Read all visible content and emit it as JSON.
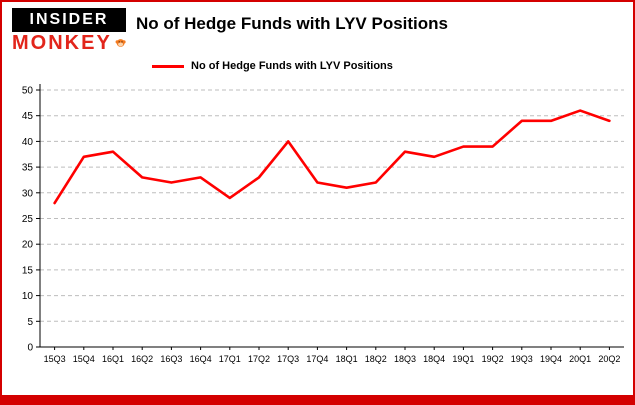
{
  "logo": {
    "top": "INSIDER",
    "bottom": "MONKEY"
  },
  "header": {
    "title": "No of Hedge Funds with LYV Positions"
  },
  "legend": {
    "label": "No of Hedge Funds with LYV Positions",
    "color": "#ff0000"
  },
  "colors": {
    "frame_red": "#d40000",
    "grid_gray": "#bdbdbd",
    "axis_black": "#000000",
    "monkey_orange": "#f47b20"
  },
  "chart_data": {
    "type": "line",
    "title": "No of Hedge Funds with LYV Positions",
    "categories": [
      "15Q3",
      "15Q4",
      "16Q1",
      "16Q2",
      "16Q3",
      "16Q4",
      "17Q1",
      "17Q2",
      "17Q3",
      "17Q4",
      "18Q1",
      "18Q2",
      "18Q3",
      "18Q4",
      "19Q1",
      "19Q2",
      "19Q3",
      "19Q4",
      "20Q1",
      "20Q2"
    ],
    "series": [
      {
        "name": "No of Hedge Funds with LYV Positions",
        "color": "#ff0000",
        "values": [
          28,
          37,
          38,
          33,
          32,
          33,
          29,
          33,
          40,
          32,
          31,
          32,
          38,
          37,
          39,
          39,
          44,
          44,
          46,
          44
        ]
      }
    ],
    "xlabel": "",
    "ylabel": "",
    "ylim": [
      0,
      50
    ],
    "ytick_interval": 5,
    "grid": true,
    "legend_position": "top-left"
  }
}
